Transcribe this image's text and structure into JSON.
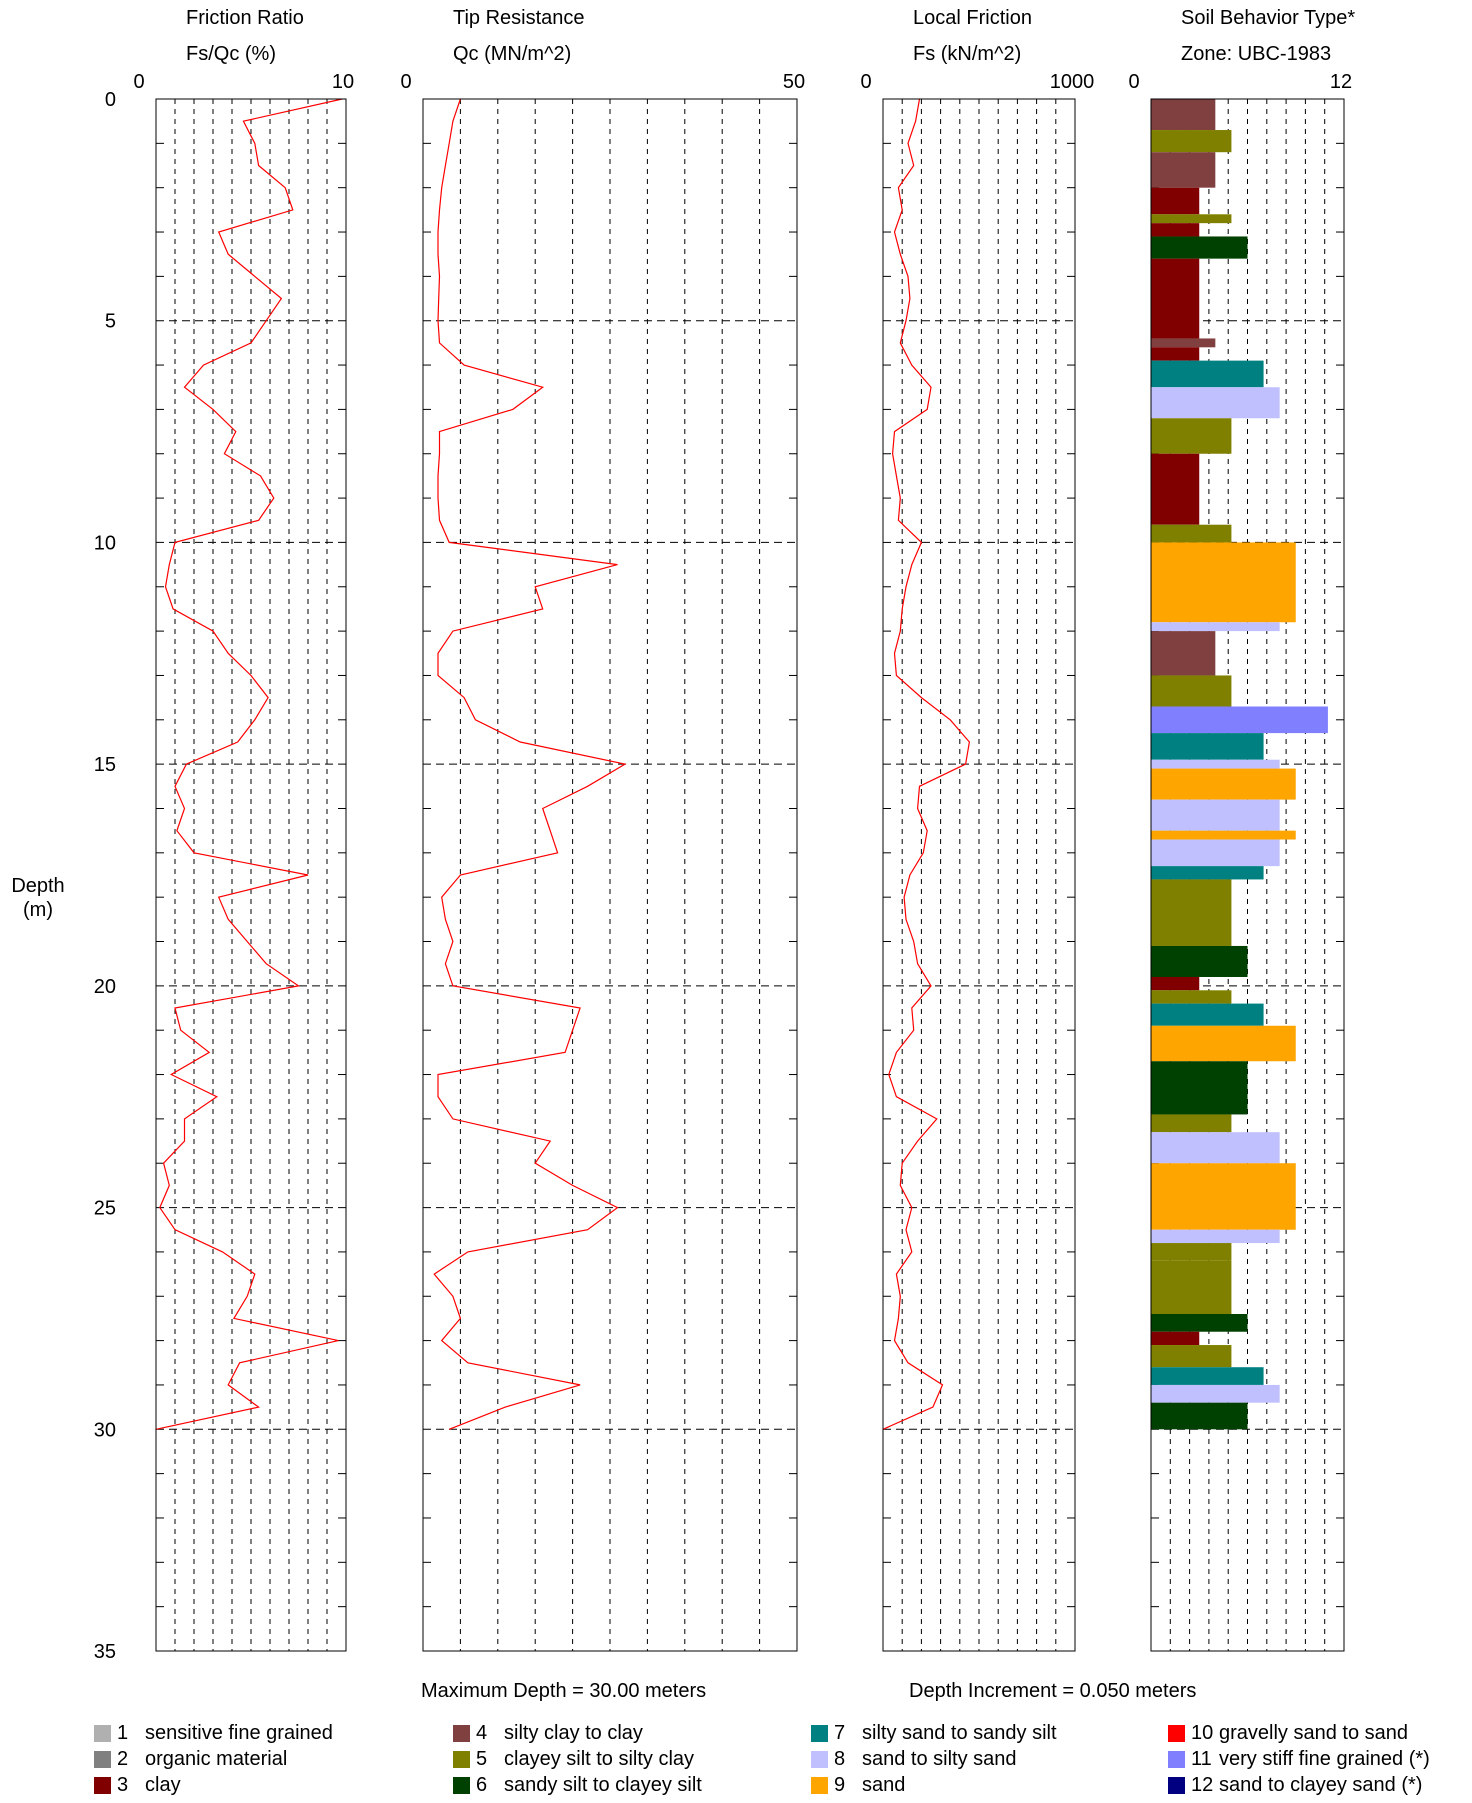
{
  "chart_data": [
    {
      "type": "line",
      "title": "Friction Ratio",
      "xlabel": "Fs/Qc (%)",
      "xlim": [
        0,
        10
      ],
      "x_ticks": [
        "0",
        "10"
      ],
      "ylabel": "Depth (m)",
      "ylim": [
        0,
        35
      ],
      "y_ticks": [
        "0",
        "5",
        "10",
        "15",
        "20",
        "25",
        "30",
        "35"
      ],
      "grid": true,
      "line_color": "#ff0000",
      "depth": [
        0,
        0.5,
        1,
        1.5,
        2,
        2.5,
        3,
        3.5,
        4,
        4.5,
        5,
        5.5,
        6,
        6.5,
        7,
        7.5,
        8,
        8.5,
        9,
        9.5,
        10,
        10.5,
        11,
        11.5,
        12,
        12.5,
        13,
        13.5,
        14,
        14.5,
        15,
        15.5,
        16,
        16.5,
        17,
        17.5,
        18,
        18.5,
        19,
        19.5,
        20,
        20.5,
        21,
        21.5,
        22,
        22.5,
        23,
        23.5,
        24,
        24.5,
        25,
        25.5,
        26,
        26.5,
        27,
        27.5,
        28,
        28.5,
        29,
        29.5,
        30
      ],
      "values": [
        9.8,
        4.6,
        5.2,
        5.4,
        6.8,
        7.2,
        3.3,
        3.8,
        5.2,
        6.6,
        5.8,
        5.0,
        2.5,
        1.5,
        3.0,
        4.2,
        3.6,
        5.5,
        6.2,
        5.4,
        1.0,
        0.7,
        0.5,
        0.9,
        3.0,
        3.8,
        5.0,
        5.9,
        5.2,
        4.3,
        1.6,
        1.0,
        1.5,
        1.1,
        2.0,
        8.0,
        3.3,
        3.8,
        4.8,
        5.8,
        7.5,
        1.0,
        1.3,
        2.8,
        0.8,
        3.2,
        1.5,
        1.5,
        0.4,
        0.7,
        0.2,
        1.0,
        3.5,
        5.2,
        4.8,
        4.1,
        9.6,
        4.4,
        3.8,
        5.4,
        0
      ]
    },
    {
      "type": "line",
      "title": "Tip Resistance",
      "xlabel": "Qc (MN/m^2)",
      "xlim": [
        0,
        50
      ],
      "x_ticks": [
        "0",
        "50"
      ],
      "ylim": [
        0,
        35
      ],
      "grid": true,
      "line_color": "#ff0000",
      "depth": [
        0,
        0.5,
        1,
        1.5,
        2,
        2.5,
        3,
        3.5,
        4,
        4.5,
        5,
        5.5,
        6,
        6.5,
        7,
        7.5,
        8,
        8.5,
        9,
        9.5,
        10,
        10.5,
        11,
        11.5,
        12,
        12.5,
        13,
        13.5,
        14,
        14.5,
        15,
        15.5,
        16,
        16.5,
        17,
        17.5,
        18,
        18.5,
        19,
        19.5,
        20,
        20.5,
        21,
        21.5,
        22,
        22.5,
        23,
        23.5,
        24,
        24.5,
        25,
        25.5,
        26,
        26.5,
        27,
        27.5,
        28,
        28.5,
        29,
        29.5,
        30
      ],
      "values": [
        5,
        4,
        3.5,
        3,
        2.5,
        2.2,
        2,
        2,
        2.2,
        2.1,
        2,
        2.2,
        5.5,
        16,
        12,
        2.2,
        2.2,
        2,
        2,
        2.2,
        3.5,
        26,
        15,
        16,
        4,
        2,
        2,
        5.5,
        7,
        13,
        27,
        22,
        16,
        17,
        18,
        5,
        2.5,
        3,
        4,
        3,
        4,
        21,
        20,
        19,
        2,
        2,
        4,
        17,
        15,
        20,
        26,
        22,
        6,
        1.5,
        4,
        5,
        2.5,
        6,
        21,
        11,
        3.5
      ]
    },
    {
      "type": "line",
      "title": "Local Friction",
      "xlabel": "Fs (kN/m^2)",
      "xlim": [
        0,
        1000
      ],
      "x_ticks": [
        "0",
        "1000"
      ],
      "ylim": [
        0,
        35
      ],
      "grid": true,
      "line_color": "#ff0000",
      "depth": [
        0,
        0.5,
        1,
        1.5,
        2,
        2.5,
        3,
        3.5,
        4,
        4.5,
        5,
        5.5,
        6,
        6.5,
        7,
        7.5,
        8,
        8.5,
        9,
        9.5,
        10,
        10.5,
        11,
        11.5,
        12,
        12.5,
        13,
        13.5,
        14,
        14.5,
        15,
        15.5,
        16,
        16.5,
        17,
        17.5,
        18,
        18.5,
        19,
        19.5,
        20,
        20.5,
        21,
        21.5,
        22,
        22.5,
        23,
        23.5,
        24,
        24.5,
        25,
        25.5,
        26,
        26.5,
        27,
        27.5,
        28,
        28.5,
        29,
        29.5,
        30
      ],
      "values": [
        190,
        170,
        130,
        160,
        80,
        100,
        60,
        90,
        130,
        140,
        120,
        90,
        150,
        250,
        230,
        60,
        50,
        70,
        90,
        80,
        200,
        150,
        120,
        100,
        90,
        60,
        70,
        200,
        350,
        450,
        430,
        190,
        180,
        230,
        210,
        140,
        110,
        120,
        160,
        180,
        250,
        150,
        160,
        70,
        30,
        70,
        280,
        180,
        100,
        90,
        150,
        120,
        150,
        70,
        90,
        80,
        60,
        130,
        310,
        260,
        0
      ]
    },
    {
      "type": "bar",
      "title": "Soil Behavior Type*",
      "xlabel": "Zone: UBC-1983",
      "xlim": [
        0,
        12
      ],
      "x_ticks": [
        "0",
        "12"
      ],
      "ylim": [
        0,
        35
      ],
      "grid": true,
      "note": "Maximum Depth = 30.00 meters",
      "increment_note": "Depth Increment = 0.050 meters",
      "layers": [
        {
          "top": 0.0,
          "bottom": 0.7,
          "zone": 4
        },
        {
          "top": 0.7,
          "bottom": 1.2,
          "zone": 5
        },
        {
          "top": 1.2,
          "bottom": 2.0,
          "zone": 4
        },
        {
          "top": 2.0,
          "bottom": 2.6,
          "zone": 3
        },
        {
          "top": 2.6,
          "bottom": 2.8,
          "zone": 5
        },
        {
          "top": 2.8,
          "bottom": 3.1,
          "zone": 3
        },
        {
          "top": 3.1,
          "bottom": 3.6,
          "zone": 6
        },
        {
          "top": 3.6,
          "bottom": 5.4,
          "zone": 3
        },
        {
          "top": 5.4,
          "bottom": 5.6,
          "zone": 4
        },
        {
          "top": 5.6,
          "bottom": 5.9,
          "zone": 3
        },
        {
          "top": 5.9,
          "bottom": 6.5,
          "zone": 7
        },
        {
          "top": 6.5,
          "bottom": 7.2,
          "zone": 8
        },
        {
          "top": 7.2,
          "bottom": 8.0,
          "zone": 5
        },
        {
          "top": 8.0,
          "bottom": 9.6,
          "zone": 3
        },
        {
          "top": 9.6,
          "bottom": 10.0,
          "zone": 5
        },
        {
          "top": 10.0,
          "bottom": 11.8,
          "zone": 9
        },
        {
          "top": 11.8,
          "bottom": 12.0,
          "zone": 8
        },
        {
          "top": 12.0,
          "bottom": 13.0,
          "zone": 4
        },
        {
          "top": 13.0,
          "bottom": 13.7,
          "zone": 5
        },
        {
          "top": 13.7,
          "bottom": 14.3,
          "zone": 11
        },
        {
          "top": 14.3,
          "bottom": 14.9,
          "zone": 7
        },
        {
          "top": 14.9,
          "bottom": 15.1,
          "zone": 8
        },
        {
          "top": 15.1,
          "bottom": 15.8,
          "zone": 9
        },
        {
          "top": 15.8,
          "bottom": 16.5,
          "zone": 8
        },
        {
          "top": 16.5,
          "bottom": 16.7,
          "zone": 9
        },
        {
          "top": 16.7,
          "bottom": 17.3,
          "zone": 8
        },
        {
          "top": 17.3,
          "bottom": 17.6,
          "zone": 7
        },
        {
          "top": 17.6,
          "bottom": 19.1,
          "zone": 5
        },
        {
          "top": 19.1,
          "bottom": 19.8,
          "zone": 6
        },
        {
          "top": 19.8,
          "bottom": 20.1,
          "zone": 3
        },
        {
          "top": 20.1,
          "bottom": 20.4,
          "zone": 5
        },
        {
          "top": 20.4,
          "bottom": 20.9,
          "zone": 7
        },
        {
          "top": 20.9,
          "bottom": 21.7,
          "zone": 9
        },
        {
          "top": 21.7,
          "bottom": 22.9,
          "zone": 6
        },
        {
          "top": 22.9,
          "bottom": 23.3,
          "zone": 5
        },
        {
          "top": 23.3,
          "bottom": 24.0,
          "zone": 8
        },
        {
          "top": 24.0,
          "bottom": 25.5,
          "zone": 9
        },
        {
          "top": 25.5,
          "bottom": 25.8,
          "zone": 8
        },
        {
          "top": 25.8,
          "bottom": 26.2,
          "zone": 5
        },
        {
          "top": 26.2,
          "bottom": 27.4,
          "zone": 5
        },
        {
          "top": 27.4,
          "bottom": 27.8,
          "zone": 6
        },
        {
          "top": 27.8,
          "bottom": 28.1,
          "zone": 3
        },
        {
          "top": 28.1,
          "bottom": 28.6,
          "zone": 5
        },
        {
          "top": 28.6,
          "bottom": 29.0,
          "zone": 7
        },
        {
          "top": 29.0,
          "bottom": 29.4,
          "zone": 8
        },
        {
          "top": 29.4,
          "bottom": 30.0,
          "zone": 6
        }
      ]
    }
  ],
  "legend": [
    {
      "code": "1",
      "label": "sensitive fine grained",
      "color": "#b0b0b0"
    },
    {
      "code": "2",
      "label": "organic material",
      "color": "#808080"
    },
    {
      "code": "3",
      "label": "clay",
      "color": "#800000"
    },
    {
      "code": "4",
      "label": "silty clay to clay",
      "color": "#804040"
    },
    {
      "code": "5",
      "label": "clayey silt to silty clay",
      "color": "#808000"
    },
    {
      "code": "6",
      "label": "sandy silt to clayey silt",
      "color": "#004000"
    },
    {
      "code": "7",
      "label": "silty sand to sandy silt",
      "color": "#008080"
    },
    {
      "code": "8",
      "label": "sand to silty sand",
      "color": "#c0c0ff"
    },
    {
      "code": "9",
      "label": "sand",
      "color": "#ffa500"
    },
    {
      "code": "10",
      "label": "gravelly sand to sand",
      "color": "#ff0000"
    },
    {
      "code": "11",
      "label": "very stiff fine grained (*)",
      "color": "#8080ff"
    },
    {
      "code": "12",
      "label": "sand to clayey sand (*)",
      "color": "#000080"
    }
  ]
}
